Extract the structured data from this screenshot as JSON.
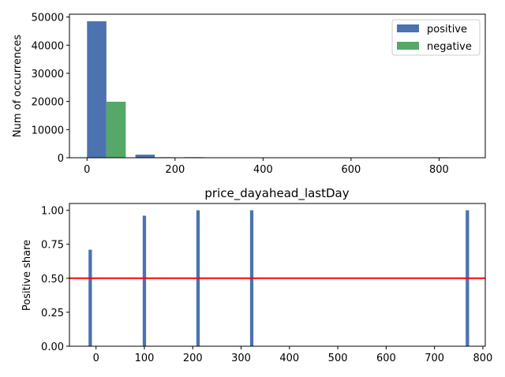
{
  "colors": {
    "positive": "#4c72b0",
    "negative": "#55a868",
    "threshold": "#ff0000"
  },
  "chart_data": [
    {
      "type": "bar",
      "title": "",
      "xlabel": "",
      "ylabel": "Num of occurrences",
      "xlim": [
        -40,
        905
      ],
      "ylim": [
        0,
        51000
      ],
      "xticks": [
        0,
        200,
        400,
        600,
        800
      ],
      "yticks": [
        0,
        10000,
        20000,
        30000,
        40000,
        50000
      ],
      "legend": {
        "position": "top-right",
        "entries": [
          "positive",
          "negative"
        ]
      },
      "bin_width": 44,
      "series": [
        {
          "name": "positive",
          "bins": [
            {
              "x0": 0,
              "value": 48500
            },
            {
              "x0": 110,
              "value": 1100
            },
            {
              "x0": 221,
              "value": 200
            },
            {
              "x0": 784,
              "value": 150
            }
          ]
        },
        {
          "name": "negative",
          "bins": [
            {
              "x0": 44,
              "value": 19900
            },
            {
              "x0": 154,
              "value": 200
            }
          ]
        }
      ]
    },
    {
      "type": "bar",
      "title": "price_dayahead_lastDay",
      "xlabel": "",
      "ylabel": "Positive share",
      "xlim": [
        -55,
        805
      ],
      "ylim": [
        0,
        1.05
      ],
      "xticks": [
        0,
        100,
        200,
        300,
        400,
        500,
        600,
        700,
        800
      ],
      "yticks": [
        "0.00",
        "0.25",
        "0.50",
        "0.75",
        "1.00"
      ],
      "threshold": 0.5,
      "bar_width": 7,
      "points": [
        {
          "x": -12,
          "value": 0.71
        },
        {
          "x": 100,
          "value": 0.96
        },
        {
          "x": 211,
          "value": 1.0
        },
        {
          "x": 322,
          "value": 1.0
        },
        {
          "x": 768,
          "value": 1.0
        }
      ]
    }
  ]
}
